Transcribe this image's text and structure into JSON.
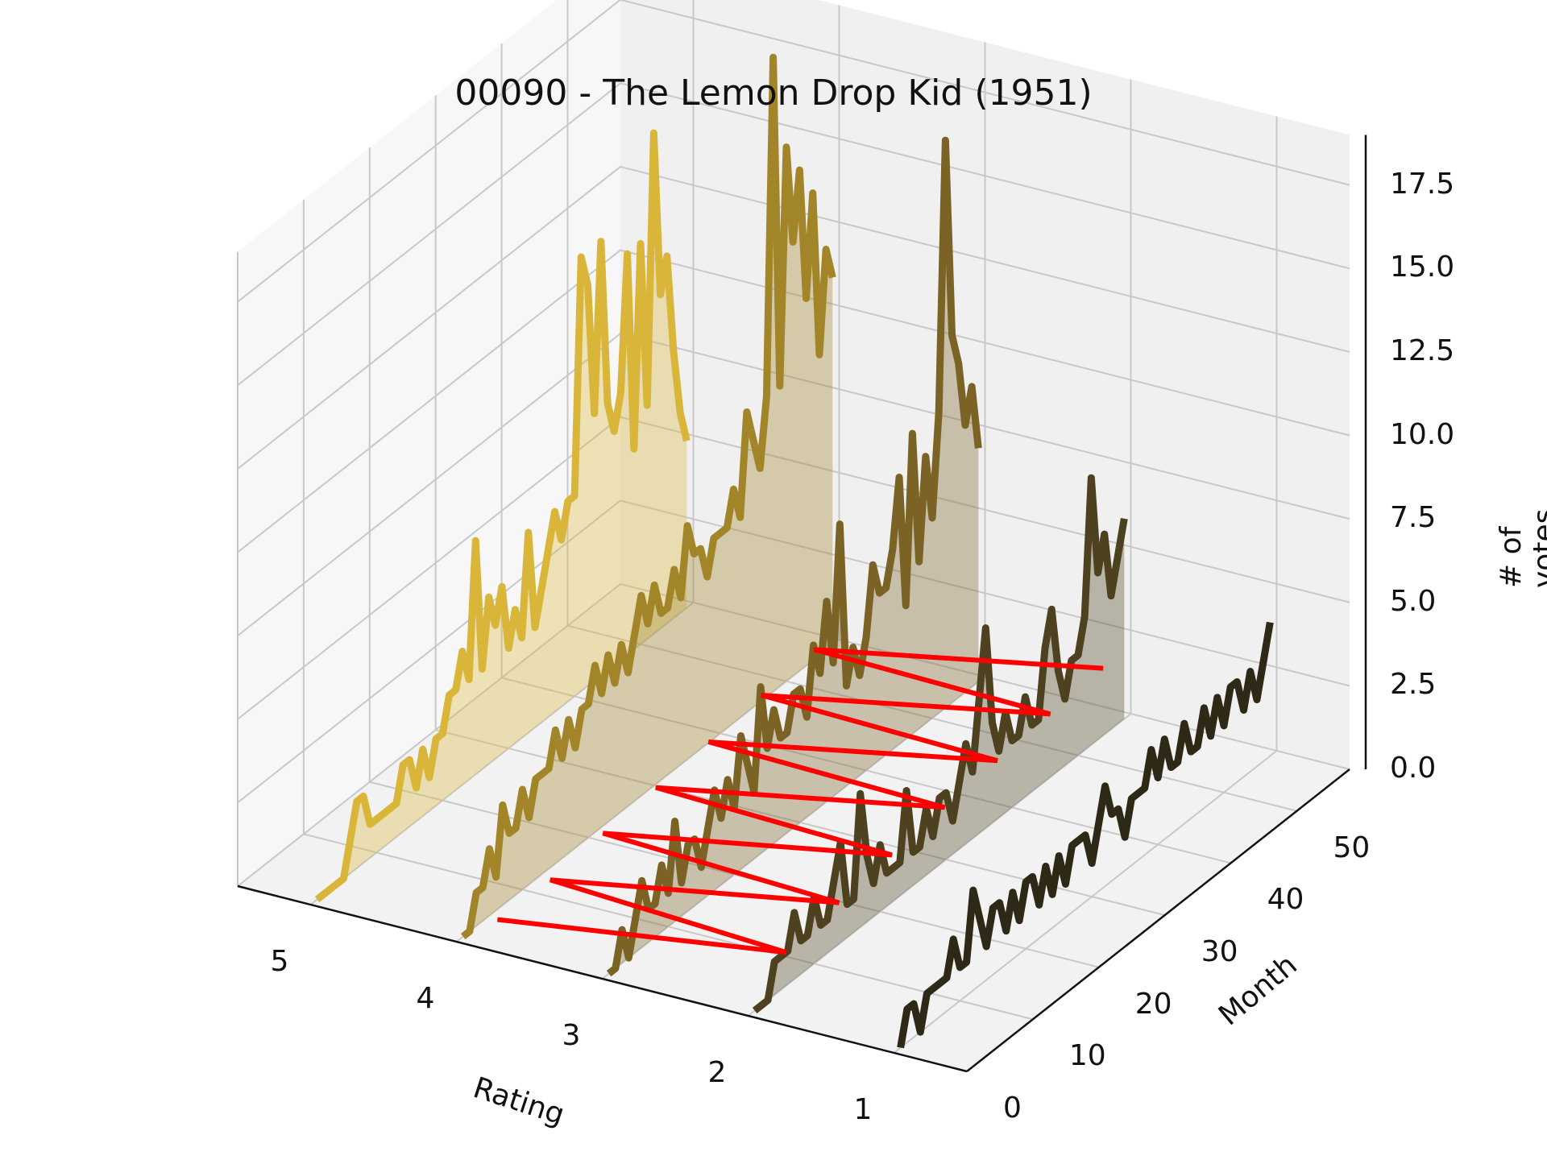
{
  "chart_data": {
    "type": "line",
    "title": "00090 - The Lemon Drop Kid (1951)",
    "xlabel": "Rating",
    "ylabel": "Month",
    "zlabel": "# of votes",
    "rating_ticks": [
      "5",
      "4",
      "3",
      "2",
      "1"
    ],
    "month_ticks": [
      "0",
      "10",
      "20",
      "30",
      "40",
      "50"
    ],
    "z_ticks": [
      "0.0",
      "2.5",
      "5.0",
      "7.5",
      "10.0",
      "12.5",
      "15.0",
      "17.5"
    ],
    "zlim": [
      0,
      19
    ],
    "ylim": [
      0,
      58
    ],
    "grid": true,
    "filled_ratings": [
      5,
      4,
      3,
      2
    ],
    "series": [
      {
        "rating": 5,
        "color": "#d9b63a",
        "months": [
          1,
          2,
          3,
          4,
          5,
          6,
          7,
          8,
          9,
          10,
          11,
          12,
          13,
          14,
          15,
          16,
          17,
          18,
          19,
          20,
          21,
          22,
          23,
          24,
          25,
          26,
          27,
          28,
          29,
          30,
          31,
          32,
          33,
          34,
          35,
          36,
          37,
          38,
          39,
          40,
          41,
          42,
          43,
          44,
          45,
          46,
          47,
          48,
          49,
          50,
          51,
          52,
          53,
          54,
          55,
          56,
          57
        ],
        "values": [
          0,
          0,
          0,
          0,
          0,
          1,
          2,
          2,
          1,
          1,
          1,
          1,
          1,
          2,
          2,
          1,
          2,
          1,
          2,
          2,
          3,
          3,
          4,
          3,
          7,
          3,
          5,
          4,
          5,
          3,
          4,
          3,
          6,
          3,
          4,
          5,
          6,
          5,
          6,
          6,
          13,
          12,
          8,
          13,
          8,
          7,
          8,
          12,
          6,
          12,
          7,
          15,
          10,
          11,
          8,
          6,
          5
        ]
      },
      {
        "rating": 4,
        "color": "#a18528",
        "months": [
          1,
          2,
          3,
          4,
          5,
          6,
          7,
          8,
          9,
          10,
          11,
          12,
          13,
          14,
          15,
          16,
          17,
          18,
          19,
          20,
          21,
          22,
          23,
          24,
          25,
          26,
          27,
          28,
          29,
          30,
          31,
          32,
          33,
          34,
          35,
          36,
          37,
          38,
          39,
          40,
          41,
          42,
          43,
          44,
          45,
          46,
          47,
          48,
          49,
          50,
          51,
          52,
          53,
          54,
          55,
          56,
          57
        ],
        "values": [
          0,
          0,
          1,
          1,
          2,
          1,
          3,
          2,
          2,
          3,
          2,
          3,
          3,
          3,
          4,
          3,
          4,
          3,
          4,
          4,
          5,
          4,
          5,
          4,
          5,
          4,
          5,
          6,
          5,
          6,
          5,
          5,
          6,
          5,
          7,
          6,
          6,
          5,
          6,
          6,
          6,
          7,
          6,
          9,
          8,
          7,
          9,
          19,
          9,
          16,
          13,
          15,
          11,
          14,
          9,
          12,
          11
        ]
      },
      {
        "rating": 3,
        "color": "#7a6324",
        "months": [
          1,
          2,
          3,
          4,
          5,
          6,
          7,
          8,
          9,
          10,
          11,
          12,
          13,
          14,
          15,
          16,
          17,
          18,
          19,
          20,
          21,
          22,
          23,
          24,
          25,
          26,
          27,
          28,
          29,
          30,
          31,
          32,
          33,
          34,
          35,
          36,
          37,
          38,
          39,
          40,
          41,
          42,
          43,
          44,
          45,
          46,
          47,
          48,
          49,
          50,
          51,
          52,
          53,
          54,
          55,
          56,
          57
        ],
        "values": [
          0,
          0,
          1,
          0,
          1,
          2,
          1,
          1,
          2,
          1,
          3,
          1,
          2,
          2,
          1,
          2,
          3,
          2,
          3,
          2,
          4,
          3,
          2,
          5,
          3,
          4,
          3,
          3,
          4,
          4,
          3,
          5,
          4,
          6,
          4,
          8,
          3,
          4,
          3,
          4,
          6,
          5,
          5,
          6,
          8,
          4,
          9,
          5,
          8,
          6,
          9,
          17,
          11,
          10,
          8,
          9,
          7
        ]
      },
      {
        "rating": 2,
        "color": "#4d4120",
        "months": [
          1,
          2,
          3,
          4,
          5,
          6,
          7,
          8,
          9,
          10,
          11,
          12,
          13,
          14,
          15,
          16,
          17,
          18,
          19,
          20,
          21,
          22,
          23,
          24,
          25,
          26,
          27,
          28,
          29,
          30,
          31,
          32,
          33,
          34,
          35,
          36,
          37,
          38,
          39,
          40,
          41,
          42,
          43,
          44,
          45,
          46,
          47,
          48,
          49,
          50,
          51,
          52,
          53,
          54,
          55,
          56,
          57
        ],
        "values": [
          0,
          0,
          0,
          1,
          1,
          1,
          2,
          1,
          1,
          2,
          1,
          1,
          2,
          3,
          1,
          1,
          4,
          2,
          1,
          2,
          1,
          1,
          1,
          3,
          1,
          1,
          2,
          1,
          2,
          2,
          1,
          2,
          3,
          2,
          4,
          6,
          3,
          2,
          3,
          2,
          2,
          3,
          2,
          2,
          4,
          5,
          3,
          2,
          3,
          3,
          4,
          8,
          5,
          6,
          4,
          5,
          6
        ]
      },
      {
        "rating": 1,
        "color": "#2e2816",
        "months": [
          1,
          2,
          3,
          4,
          5,
          6,
          7,
          8,
          9,
          10,
          11,
          12,
          13,
          14,
          15,
          16,
          17,
          18,
          19,
          20,
          21,
          22,
          23,
          24,
          25,
          26,
          27,
          28,
          29,
          30,
          31,
          32,
          33,
          34,
          35,
          36,
          37,
          38,
          39,
          40,
          41,
          42,
          43,
          44,
          45,
          46,
          47,
          48,
          49,
          50,
          51,
          52,
          53,
          54,
          55,
          56,
          57
        ],
        "values": [
          0,
          1,
          1,
          0,
          1,
          1,
          1,
          1,
          2,
          1,
          1,
          3,
          2,
          1,
          2,
          2,
          1,
          2,
          1,
          2,
          2,
          1,
          2,
          1,
          2,
          1,
          2,
          2,
          2,
          1,
          2,
          3,
          2,
          2,
          1,
          2,
          2,
          2,
          3,
          2,
          3,
          2,
          2,
          3,
          2,
          2,
          3,
          2,
          3,
          2,
          3,
          3,
          2,
          3,
          2,
          3,
          4
        ]
      },
      {
        "rating": null,
        "color": "#ff0000",
        "kind": "overlay",
        "months": [
          4,
          8,
          12,
          16,
          20,
          24,
          28,
          32,
          36,
          40,
          44,
          48,
          52,
          56
        ],
        "values": [
          0.5,
          1.8,
          0.3,
          2.6,
          0.8,
          3.2,
          1.2,
          3.8,
          1.6,
          4.3,
          2.1,
          4.8,
          2.5,
          5.2
        ]
      }
    ]
  }
}
